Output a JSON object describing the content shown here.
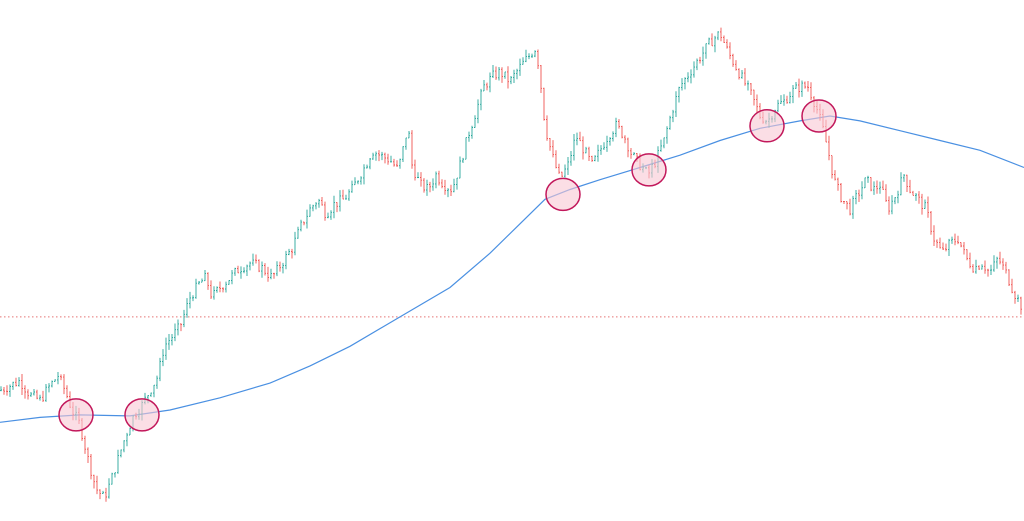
{
  "chart_data": {
    "type": "candlestick",
    "title": "",
    "xlabel": "",
    "ylabel": "",
    "ylim": [
      0,
      100
    ],
    "grid": false,
    "legend": "none",
    "colors": {
      "up": "#26a69a",
      "down": "#ef5350",
      "moving_average": "#4a90e2",
      "horizontal_level": "#e57373",
      "marker_fill": "#f8c8d4",
      "marker_stroke": "#c2185b"
    },
    "horizontal_level": {
      "value": 39,
      "style": "dotted"
    },
    "price_path": [
      [
        0,
        24
      ],
      [
        10,
        25
      ],
      [
        20,
        26
      ],
      [
        30,
        23
      ],
      [
        40,
        22
      ],
      [
        50,
        25
      ],
      [
        58,
        27
      ],
      [
        65,
        24
      ],
      [
        72,
        20
      ],
      [
        80,
        17
      ],
      [
        88,
        10
      ],
      [
        96,
        4
      ],
      [
        104,
        2
      ],
      [
        110,
        5
      ],
      [
        118,
        10
      ],
      [
        126,
        15
      ],
      [
        134,
        19
      ],
      [
        142,
        21
      ],
      [
        150,
        24
      ],
      [
        158,
        27
      ],
      [
        164,
        33
      ],
      [
        172,
        35
      ],
      [
        180,
        37
      ],
      [
        190,
        43
      ],
      [
        200,
        46
      ],
      [
        206,
        47
      ],
      [
        212,
        43
      ],
      [
        220,
        45
      ],
      [
        230,
        47
      ],
      [
        240,
        49
      ],
      [
        250,
        50
      ],
      [
        262,
        49
      ],
      [
        272,
        47
      ],
      [
        282,
        50
      ],
      [
        292,
        53
      ],
      [
        302,
        58
      ],
      [
        310,
        61
      ],
      [
        318,
        63
      ],
      [
        326,
        60
      ],
      [
        334,
        62
      ],
      [
        344,
        63
      ],
      [
        352,
        65
      ],
      [
        360,
        68
      ],
      [
        366,
        70
      ],
      [
        372,
        73
      ],
      [
        380,
        72
      ],
      [
        390,
        71
      ],
      [
        398,
        69
      ],
      [
        404,
        74
      ],
      [
        408,
        78
      ],
      [
        412,
        70
      ],
      [
        420,
        66
      ],
      [
        428,
        65
      ],
      [
        436,
        68
      ],
      [
        444,
        66
      ],
      [
        452,
        65
      ],
      [
        460,
        70
      ],
      [
        468,
        76
      ],
      [
        476,
        81
      ],
      [
        484,
        86
      ],
      [
        492,
        88
      ],
      [
        500,
        89
      ],
      [
        510,
        87
      ],
      [
        520,
        90
      ],
      [
        528,
        92
      ],
      [
        536,
        94
      ],
      [
        540,
        88
      ],
      [
        545,
        78
      ],
      [
        552,
        72
      ],
      [
        560,
        67
      ],
      [
        568,
        70
      ],
      [
        576,
        76
      ],
      [
        584,
        73
      ],
      [
        592,
        70
      ],
      [
        600,
        73
      ],
      [
        608,
        76
      ],
      [
        616,
        78
      ],
      [
        624,
        76
      ],
      [
        632,
        72
      ],
      [
        640,
        70
      ],
      [
        648,
        68
      ],
      [
        656,
        71
      ],
      [
        664,
        75
      ],
      [
        672,
        81
      ],
      [
        680,
        86
      ],
      [
        690,
        89
      ],
      [
        700,
        92
      ],
      [
        710,
        95
      ],
      [
        720,
        97
      ],
      [
        728,
        93
      ],
      [
        736,
        90
      ],
      [
        744,
        87
      ],
      [
        752,
        84
      ],
      [
        760,
        80
      ],
      [
        768,
        79
      ],
      [
        776,
        82
      ],
      [
        784,
        83
      ],
      [
        792,
        85
      ],
      [
        800,
        86
      ],
      [
        808,
        86
      ],
      [
        816,
        82
      ],
      [
        822,
        78
      ],
      [
        828,
        73
      ],
      [
        834,
        67
      ],
      [
        842,
        63
      ],
      [
        850,
        61
      ],
      [
        858,
        64
      ],
      [
        866,
        67
      ],
      [
        874,
        65
      ],
      [
        880,
        66
      ],
      [
        888,
        61
      ],
      [
        896,
        64
      ],
      [
        904,
        68
      ],
      [
        910,
        65
      ],
      [
        918,
        63
      ],
      [
        926,
        61
      ],
      [
        934,
        55
      ],
      [
        942,
        52
      ],
      [
        950,
        54
      ],
      [
        958,
        55
      ],
      [
        966,
        51
      ],
      [
        974,
        49
      ],
      [
        982,
        50
      ],
      [
        990,
        48
      ],
      [
        998,
        51
      ],
      [
        1006,
        48
      ],
      [
        1014,
        44
      ],
      [
        1022,
        41
      ]
    ],
    "moving_average_path": [
      [
        0,
        17.5
      ],
      [
        40,
        18.5
      ],
      [
        80,
        19
      ],
      [
        130,
        18.8
      ],
      [
        170,
        20
      ],
      [
        220,
        22.5
      ],
      [
        270,
        25.5
      ],
      [
        310,
        29
      ],
      [
        350,
        33
      ],
      [
        400,
        39
      ],
      [
        450,
        45
      ],
      [
        490,
        52
      ],
      [
        520,
        58
      ],
      [
        545,
        63
      ],
      [
        570,
        65
      ],
      [
        600,
        67
      ],
      [
        640,
        69.5
      ],
      [
        680,
        72
      ],
      [
        720,
        75
      ],
      [
        760,
        77.5
      ],
      [
        800,
        79
      ],
      [
        830,
        80
      ],
      [
        860,
        79
      ],
      [
        900,
        77
      ],
      [
        940,
        75
      ],
      [
        980,
        73
      ],
      [
        1024,
        69.5
      ]
    ],
    "touch_points": [
      [
        76,
        19
      ],
      [
        142,
        19
      ],
      [
        563,
        64
      ],
      [
        649,
        69
      ],
      [
        767,
        78
      ],
      [
        819,
        80
      ]
    ]
  }
}
